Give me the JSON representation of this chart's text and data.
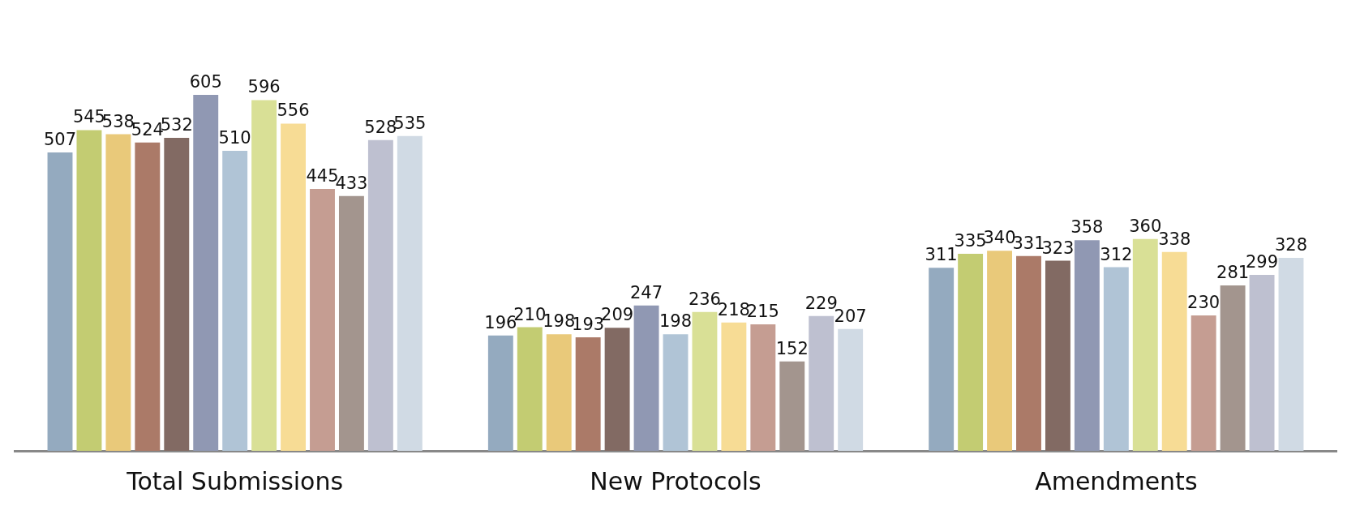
{
  "chart_data": {
    "type": "bar",
    "categories": [
      "Total Submissions",
      "New Protocols",
      "Amendments"
    ],
    "series": [
      {
        "color": "#94aabf",
        "values": [
          507,
          196,
          311
        ]
      },
      {
        "color": "#c3cc72",
        "values": [
          545,
          210,
          335
        ]
      },
      {
        "color": "#e9c97a",
        "values": [
          538,
          198,
          340
        ]
      },
      {
        "color": "#ab7a68",
        "values": [
          524,
          193,
          331
        ]
      },
      {
        "color": "#826a63",
        "values": [
          532,
          209,
          323
        ]
      },
      {
        "color": "#9098b3",
        "values": [
          605,
          247,
          358
        ]
      },
      {
        "color": "#b0c4d6",
        "values": [
          510,
          198,
          312
        ]
      },
      {
        "color": "#d9e096",
        "values": [
          596,
          236,
          360
        ]
      },
      {
        "color": "#f7dc95",
        "values": [
          556,
          218,
          338
        ]
      },
      {
        "color": "#c59d92",
        "values": [
          445,
          215,
          230
        ]
      },
      {
        "color": "#a3958e",
        "values": [
          433,
          152,
          281
        ]
      },
      {
        "color": "#bec0d0",
        "values": [
          528,
          229,
          299
        ]
      },
      {
        "color": "#d0dae4",
        "values": [
          535,
          207,
          328
        ]
      }
    ],
    "data_labels": true,
    "grid": false,
    "legend": false,
    "tick_labels": "x"
  }
}
